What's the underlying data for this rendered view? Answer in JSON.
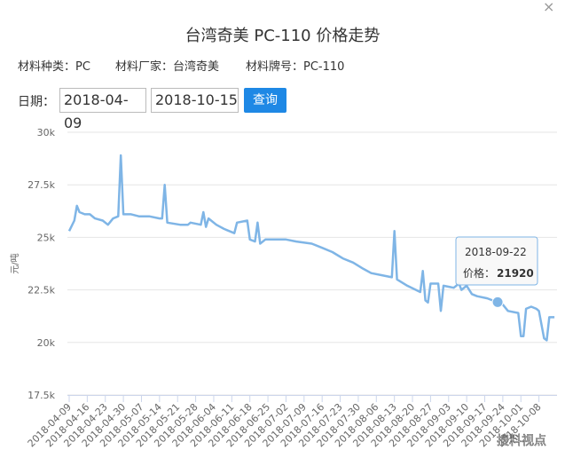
{
  "header": {
    "title": "台湾奇美 PC-110 价格走势",
    "close": "×",
    "info": [
      "材料种类：PC",
      "材料厂家：台湾奇美",
      "材料牌号：PC-110"
    ],
    "date_label": "日期：",
    "start_date": "2018-04-09",
    "end_date": "2018-10-15",
    "button": "查询"
  },
  "watermark": "搜料视点",
  "chart_data": {
    "type": "line",
    "y_label": "元/吨",
    "color": "#7fb5e6",
    "grid": true,
    "xlim": [
      "2018-04-09",
      "2018-10-15"
    ],
    "xticks": [
      "2018-04-09",
      "2018-04-16",
      "2018-04-23",
      "2018-04-30",
      "2018-05-07",
      "2018-05-14",
      "2018-05-21",
      "2018-05-28",
      "2018-06-04",
      "2018-06-11",
      "2018-06-18",
      "2018-06-25",
      "2018-07-02",
      "2018-07-09",
      "2018-07-16",
      "2018-07-23",
      "2018-07-30",
      "2018-08-06",
      "2018-08-13",
      "2018-08-20",
      "2018-08-27",
      "2018-09-03",
      "2018-09-10",
      "2018-09-17",
      "2018-09-24",
      "2018-10-01",
      "2018-10-08"
    ],
    "ylim": [
      17500,
      30000
    ],
    "yticks": [
      {
        "value": 17500,
        "label": "17.5k"
      },
      {
        "value": 20000,
        "label": "20k"
      },
      {
        "value": 22500,
        "label": "22.5k"
      },
      {
        "value": 25000,
        "label": "25k"
      },
      {
        "value": 27500,
        "label": "27.5k"
      },
      {
        "value": 30000,
        "label": "30k"
      }
    ],
    "x": [
      "2018-04-09",
      "2018-04-11",
      "2018-04-12",
      "2018-04-13",
      "2018-04-15",
      "2018-04-17",
      "2018-04-19",
      "2018-04-22",
      "2018-04-24",
      "2018-04-26",
      "2018-04-28",
      "2018-04-29",
      "2018-04-30",
      "2018-05-03",
      "2018-05-06",
      "2018-05-10",
      "2018-05-14",
      "2018-05-15",
      "2018-05-16",
      "2018-05-17",
      "2018-05-22",
      "2018-05-25",
      "2018-05-26",
      "2018-05-30",
      "2018-05-31",
      "2018-06-01",
      "2018-06-02",
      "2018-06-05",
      "2018-06-08",
      "2018-06-12",
      "2018-06-13",
      "2018-06-17",
      "2018-06-18",
      "2018-06-20",
      "2018-06-21",
      "2018-06-22",
      "2018-06-24",
      "2018-06-26",
      "2018-06-28",
      "2018-07-02",
      "2018-07-06",
      "2018-07-12",
      "2018-07-16",
      "2018-07-20",
      "2018-07-24",
      "2018-07-28",
      "2018-08-01",
      "2018-08-04",
      "2018-08-08",
      "2018-08-12",
      "2018-08-13",
      "2018-08-14",
      "2018-08-18",
      "2018-08-23",
      "2018-08-24",
      "2018-08-25",
      "2018-08-26",
      "2018-08-27",
      "2018-08-30",
      "2018-08-31",
      "2018-09-01",
      "2018-09-05",
      "2018-09-07",
      "2018-09-08",
      "2018-09-10",
      "2018-09-12",
      "2018-09-14",
      "2018-09-18",
      "2018-09-20",
      "2018-09-22",
      "2018-09-24",
      "2018-09-26",
      "2018-09-30",
      "2018-10-01",
      "2018-10-02",
      "2018-10-03",
      "2018-10-05",
      "2018-10-07",
      "2018-10-08",
      "2018-10-10",
      "2018-10-11",
      "2018-10-12",
      "2018-10-14"
    ],
    "values": [
      25300,
      25800,
      26500,
      26200,
      26100,
      26100,
      25900,
      25800,
      25600,
      25900,
      26000,
      28900,
      26100,
      26100,
      26000,
      26000,
      25900,
      25900,
      27500,
      25700,
      25600,
      25600,
      25700,
      25600,
      26200,
      25500,
      25900,
      25600,
      25400,
      25200,
      25700,
      25800,
      24900,
      24800,
      25700,
      24700,
      24900,
      24900,
      24900,
      24900,
      24800,
      24700,
      24500,
      24300,
      24000,
      23800,
      23500,
      23300,
      23200,
      23100,
      25300,
      23000,
      22700,
      22400,
      23400,
      22000,
      21900,
      22800,
      22800,
      21500,
      22700,
      22600,
      22800,
      22500,
      22700,
      22300,
      22200,
      22100,
      22000,
      21920,
      21800,
      21500,
      21400,
      20300,
      20300,
      21600,
      21700,
      21600,
      21500,
      20200,
      20100,
      21200,
      21200
    ],
    "tooltip": {
      "x": "2018-09-22",
      "label": "价格：",
      "value": 21920
    }
  }
}
